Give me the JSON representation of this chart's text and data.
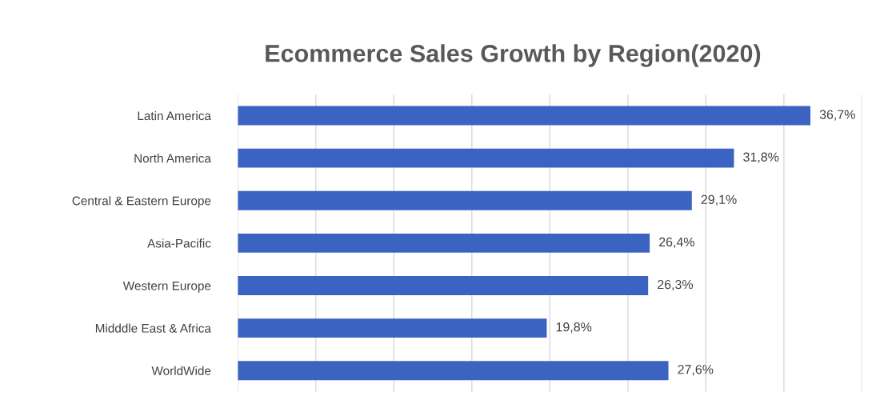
{
  "chart_data": {
    "type": "bar",
    "orientation": "horizontal",
    "title": "Ecommerce Sales Growth by Region(2020)",
    "categories": [
      "Latin America",
      "North America",
      "Central & Eastern Europe",
      "Asia-Pacific",
      "Western Europe",
      "Midddle East & Africa",
      "WorldWide"
    ],
    "values": [
      36.7,
      31.8,
      29.1,
      26.4,
      26.3,
      19.8,
      27.6
    ],
    "value_labels": [
      "36,7%",
      "31,8%",
      "29,1%",
      "26,4%",
      "26,3%",
      "19,8%",
      "27,6%"
    ],
    "color": "#3b64c2",
    "xlim": [
      0,
      40
    ],
    "xticks": [
      {
        "value": 0,
        "label": null
      },
      {
        "value": 5,
        "label": null
      },
      {
        "value": 10,
        "label": null
      },
      {
        "value": 15,
        "label": null
      },
      {
        "value": 20,
        "label": null
      },
      {
        "value": 25,
        "label": null
      },
      {
        "value": 30,
        "label": null
      },
      {
        "value": 35,
        "label": null
      },
      {
        "value": 40,
        "label": null
      }
    ],
    "grid": "x",
    "tick_labels": "y"
  }
}
